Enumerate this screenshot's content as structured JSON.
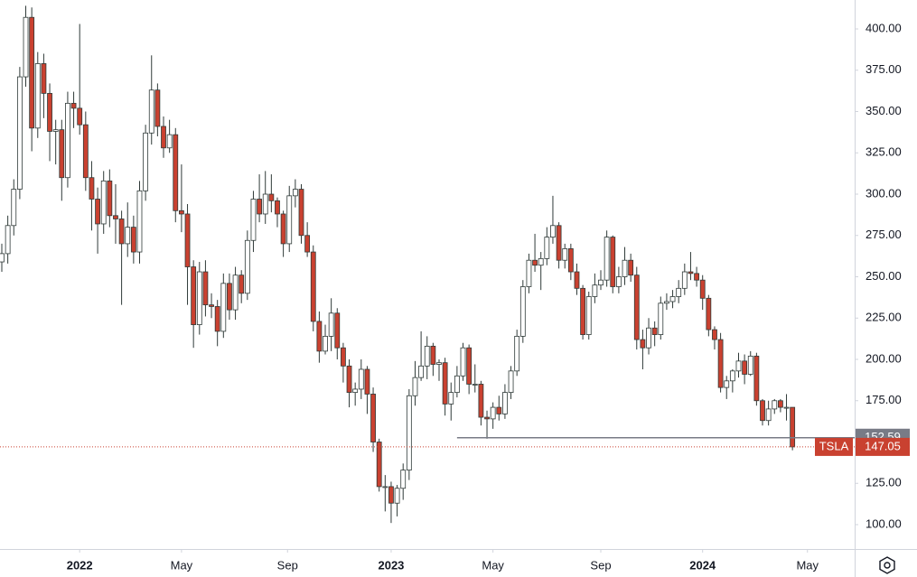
{
  "chart_data": {
    "type": "candlestick",
    "symbol": "TSLA",
    "open": [
      259,
      264,
      281,
      303,
      371,
      407,
      340,
      379,
      361,
      338,
      339,
      310,
      355,
      352,
      342,
      310,
      297,
      282,
      308,
      287,
      285,
      270,
      280,
      265,
      302,
      337,
      363,
      341,
      328,
      336,
      290,
      288,
      256,
      221,
      253,
      233,
      232,
      217,
      246,
      230,
      251,
      240,
      272,
      297,
      288,
      300,
      296,
      288,
      270,
      299,
      303,
      275,
      265,
      223,
      205,
      214,
      228,
      207,
      196,
      180,
      182,
      194,
      179,
      150,
      123,
      123,
      113,
      122,
      133,
      178,
      189,
      196,
      208,
      197,
      198,
      173,
      180,
      190,
      207,
      185,
      185,
      165,
      164,
      171,
      167,
      180,
      193,
      214,
      244,
      260,
      257,
      261,
      274,
      281,
      260,
      267,
      253,
      243,
      215,
      238,
      245,
      248,
      274,
      244,
      250,
      260,
      251,
      212,
      207,
      219,
      215,
      234,
      235,
      238,
      243,
      253,
      252,
      248,
      237,
      218,
      212,
      183,
      187,
      193,
      199,
      191,
      202,
      175,
      163,
      170,
      175,
      171,
      171
    ],
    "high": [
      270,
      287,
      309,
      377,
      414,
      413,
      386,
      385,
      367,
      345,
      345,
      362,
      362,
      403,
      350,
      320,
      304,
      314,
      315,
      306,
      290,
      295,
      287,
      308,
      342,
      384,
      367,
      347,
      345,
      340,
      318,
      294,
      260,
      259,
      260,
      240,
      236,
      252,
      252,
      256,
      254,
      278,
      302,
      312,
      314,
      312,
      298,
      290,
      305,
      309,
      306,
      283,
      269,
      229,
      221,
      237,
      231,
      210,
      200,
      186,
      200,
      196,
      183,
      152,
      130,
      126,
      124,
      137,
      182,
      199,
      217,
      214,
      210,
      200,
      201,
      186,
      196,
      210,
      209,
      197,
      187,
      169,
      174,
      178,
      185,
      196,
      218,
      248,
      264,
      276,
      265,
      280,
      299,
      283,
      270,
      270,
      258,
      245,
      241,
      252,
      254,
      278,
      275,
      256,
      268,
      264,
      256,
      218,
      225,
      223,
      238,
      240,
      242,
      248,
      258,
      265,
      256,
      251,
      239,
      220,
      216,
      190,
      194,
      204,
      203,
      205,
      204,
      176,
      175,
      176,
      176,
      179,
      171
    ],
    "low": [
      253,
      258,
      275,
      297,
      365,
      326,
      334,
      346,
      320,
      318,
      296,
      304,
      340,
      336,
      302,
      278,
      264,
      276,
      280,
      270,
      233,
      262,
      258,
      258,
      296,
      330,
      335,
      322,
      325,
      283,
      277,
      233,
      207,
      215,
      226,
      225,
      208,
      213,
      224,
      224,
      234,
      236,
      265,
      283,
      282,
      289,
      280,
      262,
      265,
      292,
      270,
      262,
      217,
      198,
      203,
      205,
      200,
      186,
      171,
      172,
      176,
      167,
      144,
      120,
      108,
      101,
      105,
      115,
      127,
      172,
      187,
      188,
      190,
      187,
      166,
      163,
      177,
      187,
      179,
      180,
      160,
      152,
      158,
      163,
      164,
      176,
      190,
      210,
      240,
      253,
      242,
      257,
      270,
      255,
      255,
      248,
      239,
      212,
      212,
      234,
      242,
      244,
      240,
      240,
      245,
      247,
      206,
      194,
      203,
      208,
      212,
      230,
      231,
      234,
      239,
      248,
      244,
      230,
      214,
      206,
      180,
      176,
      180,
      189,
      185,
      190,
      172,
      160,
      160,
      167,
      168,
      163,
      145
    ],
    "close": [
      264,
      281,
      303,
      371,
      407,
      340,
      379,
      361,
      338,
      339,
      310,
      355,
      352,
      342,
      310,
      297,
      282,
      308,
      287,
      285,
      270,
      280,
      265,
      302,
      337,
      363,
      341,
      328,
      336,
      290,
      288,
      256,
      221,
      253,
      233,
      232,
      217,
      246,
      230,
      251,
      240,
      272,
      297,
      288,
      300,
      296,
      288,
      270,
      299,
      303,
      275,
      265,
      223,
      205,
      214,
      228,
      207,
      196,
      180,
      182,
      194,
      179,
      150,
      123,
      123,
      113,
      122,
      133,
      178,
      189,
      196,
      208,
      197,
      198,
      173,
      180,
      190,
      207,
      185,
      185,
      165,
      164,
      171,
      167,
      180,
      193,
      214,
      244,
      260,
      257,
      261,
      274,
      281,
      260,
      267,
      253,
      243,
      215,
      238,
      245,
      248,
      274,
      244,
      250,
      260,
      251,
      212,
      207,
      219,
      215,
      234,
      235,
      238,
      243,
      253,
      252,
      248,
      237,
      218,
      212,
      183,
      187,
      193,
      199,
      191,
      202,
      175,
      163,
      170,
      175,
      171,
      171,
      147.05
    ],
    "hline": 152.59,
    "up_color": "#ffffff",
    "down_color": "#c94130",
    "outline": "#2f3a38",
    "hline_color": "#787b86",
    "ylim": [
      85.25,
      417.5
    ],
    "yticks": [
      {
        "value": 100,
        "label": "100.00"
      },
      {
        "value": 125,
        "label": "125.00"
      },
      {
        "value": 150,
        "label": "150.00"
      },
      {
        "value": 175,
        "label": "175.00"
      },
      {
        "value": 200,
        "label": "200.00"
      },
      {
        "value": 225,
        "label": "225.00"
      },
      {
        "value": 250,
        "label": "250.00"
      },
      {
        "value": 275,
        "label": "275.00"
      },
      {
        "value": 300,
        "label": "300.00"
      },
      {
        "value": 325,
        "label": "325.00"
      },
      {
        "value": 350,
        "label": "350.00"
      },
      {
        "value": 375,
        "label": "375.00"
      },
      {
        "value": 400,
        "label": "400.00"
      }
    ],
    "xticks": [
      {
        "value": 13,
        "label": "2022"
      },
      {
        "value": 30,
        "label": "May"
      },
      {
        "value": 47.7,
        "label": "Sep"
      },
      {
        "value": 65,
        "label": "2023"
      },
      {
        "value": 82,
        "label": "May"
      },
      {
        "value": 100,
        "label": "Sep"
      },
      {
        "value": 117,
        "label": "2024"
      },
      {
        "value": 134.5,
        "label": "May"
      }
    ]
  }
}
